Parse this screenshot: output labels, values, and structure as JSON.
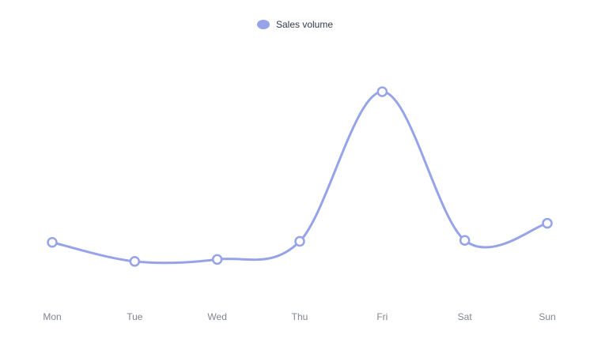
{
  "chart_data": {
    "type": "line",
    "categories": [
      "Mon",
      "Tue",
      "Wed",
      "Thu",
      "Fri",
      "Sat",
      "Sun"
    ],
    "series": [
      {
        "name": "Sales volume",
        "values": [
          120,
          82,
          86,
          122,
          420,
          124,
          158
        ]
      }
    ],
    "xlabel": "",
    "ylabel": "",
    "ylim": [
      0,
      450
    ],
    "grid": false,
    "legend": "top-center",
    "smooth": true,
    "colors": {
      "series": "#96a3e8",
      "marker_fill": "#ffffff",
      "tick_text": "#7f8593",
      "legend_text": "#333a4a"
    }
  }
}
